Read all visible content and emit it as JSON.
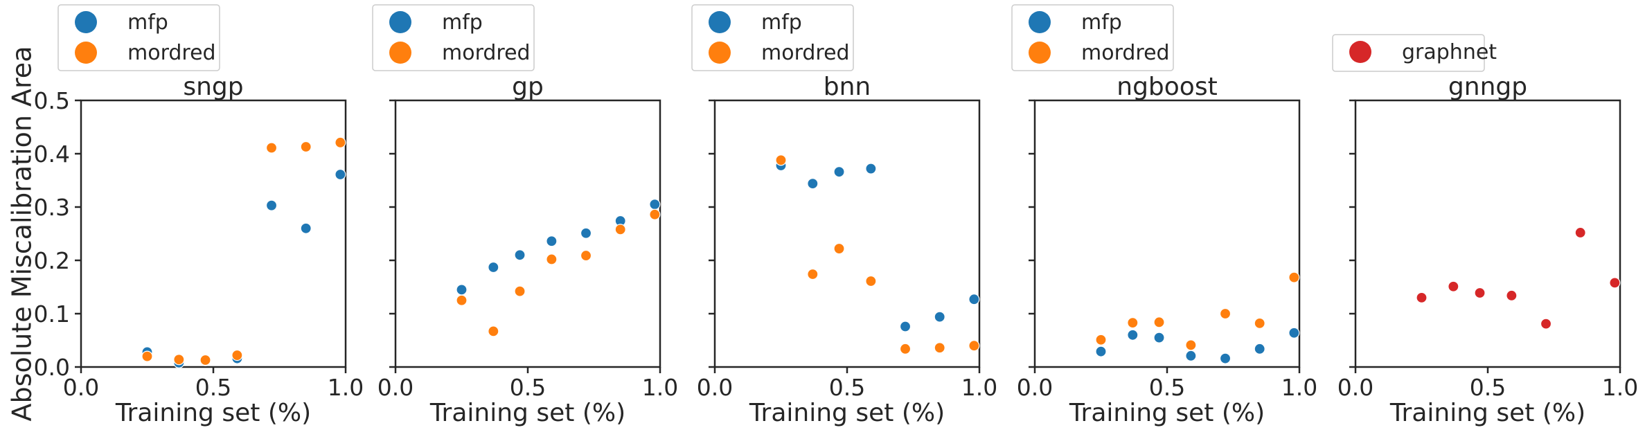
{
  "figure": {
    "ylabel": "Absolute Miscalibration Area"
  },
  "chart_data": [
    {
      "type": "scatter",
      "title": "sngp",
      "xlabel": "Training set (%)",
      "ylabel": "Absolute Miscalibration Area",
      "xlim": [
        0.0,
        1.0
      ],
      "ylim": [
        0.0,
        0.5
      ],
      "xticks": [
        "0.0",
        "0.5",
        "1.0"
      ],
      "yticks": [
        "0.0",
        "0.1",
        "0.2",
        "0.3",
        "0.4",
        "0.5"
      ],
      "legend": "top",
      "series": [
        {
          "name": "mfp",
          "color": "#1f77b4",
          "x": [
            0.25,
            0.37,
            0.47,
            0.59,
            0.72,
            0.85,
            0.98
          ],
          "y": [
            0.028,
            0.008,
            0.012,
            0.016,
            0.303,
            0.26,
            0.361
          ]
        },
        {
          "name": "mordred",
          "color": "#ff7f0e",
          "x": [
            0.25,
            0.37,
            0.47,
            0.59,
            0.72,
            0.85,
            0.98
          ],
          "y": [
            0.02,
            0.014,
            0.013,
            0.022,
            0.411,
            0.413,
            0.421
          ]
        }
      ]
    },
    {
      "type": "scatter",
      "title": "gp",
      "xlabel": "Training set (%)",
      "xlim": [
        0.0,
        1.0
      ],
      "ylim": [
        0.0,
        0.5
      ],
      "xticks": [
        "0.0",
        "0.5",
        "1.0"
      ],
      "legend": "top",
      "series": [
        {
          "name": "mfp",
          "color": "#1f77b4",
          "x": [
            0.25,
            0.37,
            0.47,
            0.59,
            0.72,
            0.85,
            0.98
          ],
          "y": [
            0.145,
            0.187,
            0.21,
            0.236,
            0.251,
            0.274,
            0.305
          ]
        },
        {
          "name": "mordred",
          "color": "#ff7f0e",
          "x": [
            0.25,
            0.37,
            0.47,
            0.59,
            0.72,
            0.85,
            0.98
          ],
          "y": [
            0.125,
            0.067,
            0.142,
            0.202,
            0.209,
            0.258,
            0.286
          ]
        }
      ]
    },
    {
      "type": "scatter",
      "title": "bnn",
      "xlabel": "Training set (%)",
      "xlim": [
        0.0,
        1.0
      ],
      "ylim": [
        0.0,
        0.5
      ],
      "xticks": [
        "0.0",
        "0.5",
        "1.0"
      ],
      "legend": "top",
      "series": [
        {
          "name": "mfp",
          "color": "#1f77b4",
          "x": [
            0.25,
            0.37,
            0.47,
            0.59,
            0.72,
            0.85,
            0.98
          ],
          "y": [
            0.378,
            0.344,
            0.366,
            0.372,
            0.076,
            0.094,
            0.127
          ]
        },
        {
          "name": "mordred",
          "color": "#ff7f0e",
          "x": [
            0.25,
            0.37,
            0.47,
            0.59,
            0.72,
            0.85,
            0.98
          ],
          "y": [
            0.388,
            0.174,
            0.222,
            0.161,
            0.034,
            0.036,
            0.04
          ]
        }
      ]
    },
    {
      "type": "scatter",
      "title": "ngboost",
      "xlabel": "Training set (%)",
      "xlim": [
        0.0,
        1.0
      ],
      "ylim": [
        0.0,
        0.5
      ],
      "xticks": [
        "0.0",
        "0.5",
        "1.0"
      ],
      "legend": "top",
      "series": [
        {
          "name": "mfp",
          "color": "#1f77b4",
          "x": [
            0.25,
            0.37,
            0.47,
            0.59,
            0.72,
            0.85,
            0.98
          ],
          "y": [
            0.029,
            0.06,
            0.055,
            0.021,
            0.016,
            0.034,
            0.064
          ]
        },
        {
          "name": "mordred",
          "color": "#ff7f0e",
          "x": [
            0.25,
            0.37,
            0.47,
            0.59,
            0.72,
            0.85,
            0.98
          ],
          "y": [
            0.051,
            0.083,
            0.084,
            0.041,
            0.1,
            0.082,
            0.168
          ]
        }
      ]
    },
    {
      "type": "scatter",
      "title": "gnngp",
      "xlabel": "Training set (%)",
      "xlim": [
        0.0,
        1.0
      ],
      "ylim": [
        0.0,
        0.5
      ],
      "xticks": [
        "0.0",
        "0.5",
        "1.0"
      ],
      "legend": "top",
      "series": [
        {
          "name": "graphnet",
          "color": "#d62728",
          "x": [
            0.25,
            0.37,
            0.47,
            0.59,
            0.72,
            0.85,
            0.98
          ],
          "y": [
            0.13,
            0.151,
            0.139,
            0.134,
            0.081,
            0.252,
            0.158
          ]
        }
      ]
    }
  ]
}
